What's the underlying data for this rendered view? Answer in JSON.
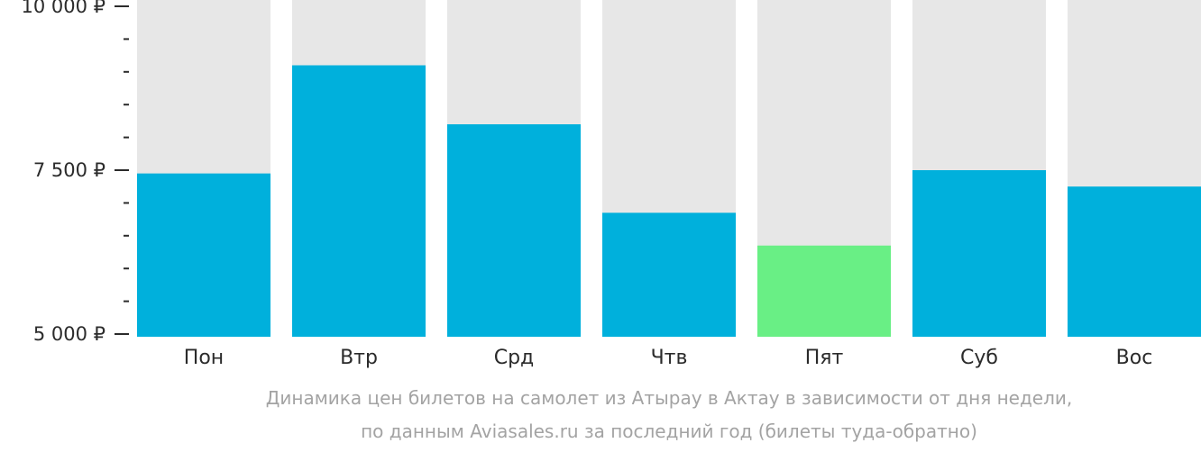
{
  "chart_data": {
    "type": "bar",
    "categories": [
      "Пон",
      "Втр",
      "Срд",
      "Чтв",
      "Пят",
      "Суб",
      "Вос"
    ],
    "values": [
      7450,
      9100,
      8200,
      6850,
      6350,
      7500,
      7250
    ],
    "ylim": [
      5000,
      10000
    ],
    "y_ticks": [
      {
        "value": 5000,
        "label": "5 000 ₽"
      },
      {
        "value": 7500,
        "label": "7 500 ₽"
      },
      {
        "value": 10000,
        "label": "10 000 ₽"
      }
    ],
    "y_minor_step": 500,
    "highlight_index": 4,
    "colors": {
      "bar": "#00b0dc",
      "highlight": "#69ef85",
      "background_column": "#e7e7e7",
      "axis_text": "#2b2b2b",
      "caption": "#a3a3a3"
    },
    "grid": false,
    "legend": "none"
  },
  "caption": {
    "line1": "Динамика цен билетов на самолет из Атырау в Актау в зависимости от дня недели,",
    "line2": "по данным Aviasales.ru за последний год (билеты туда-обратно)"
  }
}
